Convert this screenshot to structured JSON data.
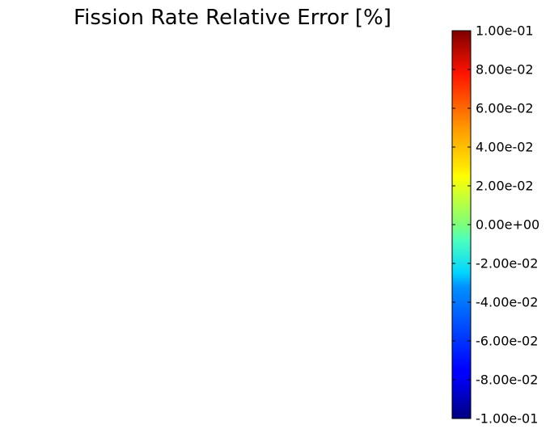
{
  "chart_data": {
    "type": "heatmap",
    "title": "Fission Rate Relative Error [%]",
    "colorbar": {
      "colormap": "jet",
      "vmin": -0.1,
      "vmax": 0.1,
      "orientation": "vertical",
      "ticks": [
        0.1,
        0.08,
        0.06,
        0.04,
        0.02,
        0.0,
        -0.02,
        -0.04,
        -0.06,
        -0.08,
        -0.1
      ],
      "tick_labels": [
        "1.00e-01",
        "8.00e-02",
        "6.00e-02",
        "4.00e-02",
        "2.00e-02",
        "0.00e+00",
        "-2.00e-02",
        "-4.00e-02",
        "-6.00e-02",
        "-8.00e-02",
        "-1.00e-01"
      ]
    },
    "cells": []
  }
}
